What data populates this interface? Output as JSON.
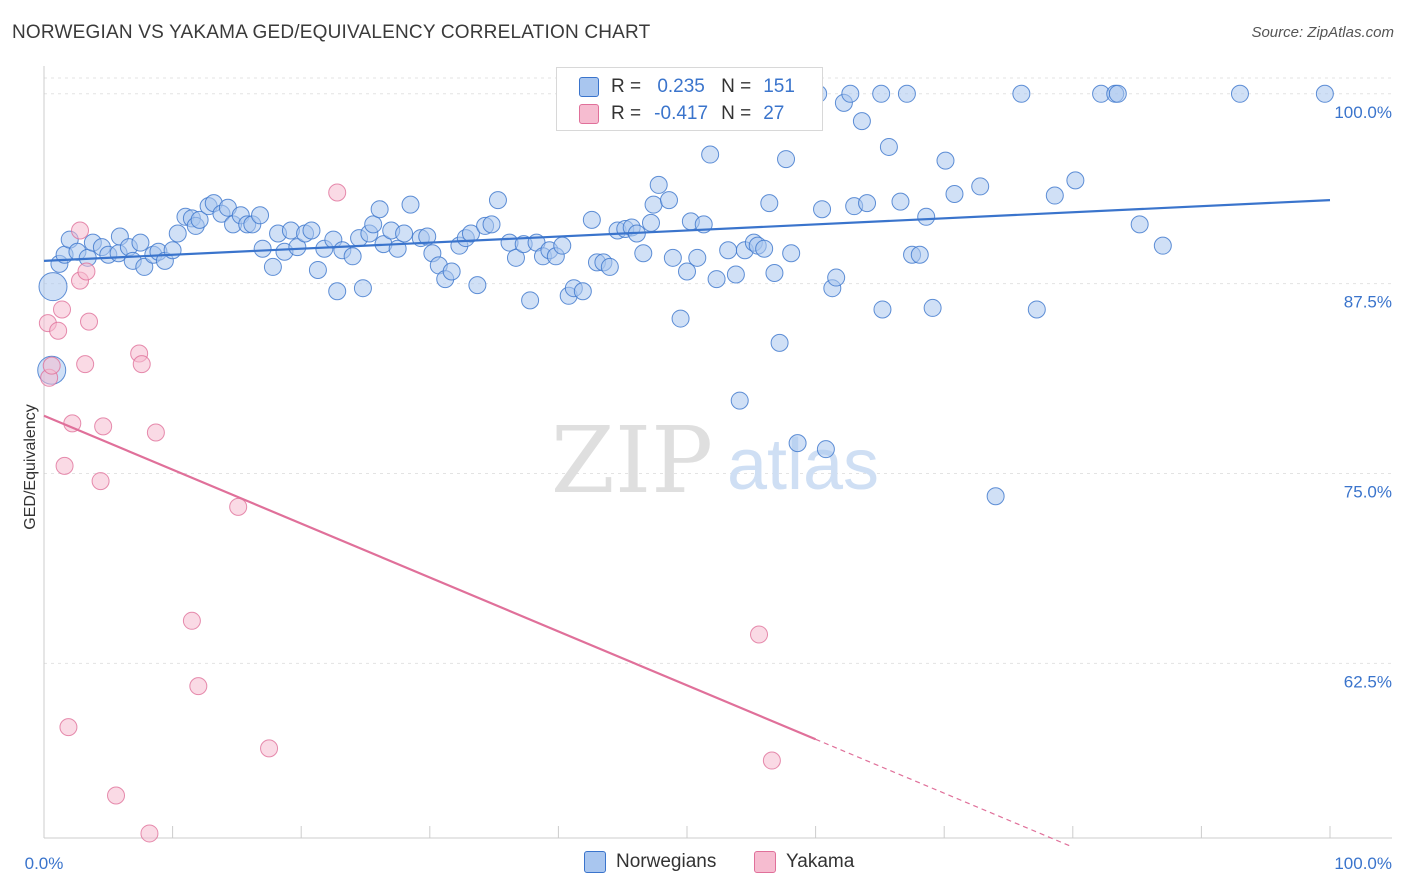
{
  "title": "NORWEGIAN VS YAKAMA GED/EQUIVALENCY CORRELATION CHART",
  "source": "Source: ZipAtlas.com",
  "watermark": {
    "zip": "ZIP",
    "atlas": "atlas"
  },
  "colors": {
    "blue": "#3a74cc",
    "blue_fill": "#a9c6ef",
    "pink": "#e0709a",
    "pink_fill": "#f6bcd0",
    "grid": "#dddddd"
  },
  "legend": {
    "r_label": "R =",
    "n_label": "N =",
    "rows": [
      {
        "r": "0.235",
        "n": "151"
      },
      {
        "r": "-0.417",
        "n": "27"
      }
    ]
  },
  "chart_data": {
    "type": "scatter",
    "xlabel": "",
    "ylabel": "GED/Equivalency",
    "xlim": [
      0,
      100
    ],
    "ylim": [
      51.0,
      101.5
    ],
    "x_tick_labels": [
      "0.0%",
      "100.0%"
    ],
    "y_ticks": [
      {
        "value": 100.0,
        "label": "100.0%"
      },
      {
        "value": 87.5,
        "label": "87.5%"
      },
      {
        "value": 75.0,
        "label": "75.0%"
      },
      {
        "value": 62.5,
        "label": "62.5%"
      }
    ],
    "series": [
      {
        "name": "Norwegians",
        "color": "#3a74cc",
        "trend": {
          "x": [
            0,
            100
          ],
          "y": [
            89.0,
            93.0
          ],
          "dashed_to": 100
        },
        "points": [
          [
            0.7,
            87.3,
            1
          ],
          [
            0.6,
            81.8,
            1
          ],
          [
            1.2,
            88.8,
            0
          ],
          [
            1.6,
            89.4,
            0
          ],
          [
            2.0,
            90.4,
            0
          ],
          [
            2.6,
            89.6,
            0
          ],
          [
            3.4,
            89.2,
            0
          ],
          [
            3.8,
            90.2,
            0
          ],
          [
            4.5,
            89.9,
            0
          ],
          [
            5.0,
            89.4,
            0
          ],
          [
            5.8,
            89.5,
            0
          ],
          [
            5.9,
            90.6,
            0
          ],
          [
            6.6,
            89.9,
            0
          ],
          [
            6.9,
            89.0,
            0
          ],
          [
            7.5,
            90.2,
            0
          ],
          [
            7.8,
            88.6,
            0
          ],
          [
            8.5,
            89.4,
            0
          ],
          [
            8.9,
            89.6,
            0
          ],
          [
            9.4,
            89.0,
            0
          ],
          [
            10.0,
            89.7,
            0
          ],
          [
            10.4,
            90.8,
            0
          ],
          [
            11.0,
            91.9,
            0
          ],
          [
            11.5,
            91.8,
            0
          ],
          [
            11.8,
            91.3,
            0
          ],
          [
            12.1,
            91.7,
            0
          ],
          [
            12.8,
            92.6,
            0
          ],
          [
            13.2,
            92.8,
            0
          ],
          [
            13.8,
            92.1,
            0
          ],
          [
            14.3,
            92.5,
            0
          ],
          [
            14.7,
            91.4,
            0
          ],
          [
            15.3,
            92.0,
            0
          ],
          [
            15.8,
            91.4,
            0
          ],
          [
            16.2,
            91.4,
            0
          ],
          [
            16.8,
            92.0,
            0
          ],
          [
            17.0,
            89.8,
            0
          ],
          [
            17.8,
            88.6,
            0
          ],
          [
            18.2,
            90.8,
            0
          ],
          [
            18.7,
            89.6,
            0
          ],
          [
            19.2,
            91.0,
            0
          ],
          [
            19.7,
            89.9,
            0
          ],
          [
            20.3,
            90.8,
            0
          ],
          [
            20.8,
            91.0,
            0
          ],
          [
            21.3,
            88.4,
            0
          ],
          [
            21.8,
            89.8,
            0
          ],
          [
            22.5,
            90.4,
            0
          ],
          [
            22.8,
            87.0,
            0
          ],
          [
            23.2,
            89.7,
            0
          ],
          [
            24.0,
            89.3,
            0
          ],
          [
            24.5,
            90.5,
            0
          ],
          [
            24.8,
            87.2,
            0
          ],
          [
            25.3,
            90.8,
            0
          ],
          [
            25.6,
            91.4,
            0
          ],
          [
            26.1,
            92.4,
            0
          ],
          [
            26.4,
            90.1,
            0
          ],
          [
            27.0,
            91.0,
            0
          ],
          [
            27.5,
            89.8,
            0
          ],
          [
            28.0,
            90.8,
            0
          ],
          [
            28.5,
            92.7,
            0
          ],
          [
            29.3,
            90.5,
            0
          ],
          [
            29.8,
            90.6,
            0
          ],
          [
            30.2,
            89.5,
            0
          ],
          [
            30.7,
            88.7,
            0
          ],
          [
            31.2,
            87.8,
            0
          ],
          [
            31.7,
            88.3,
            0
          ],
          [
            32.3,
            90.0,
            0
          ],
          [
            32.8,
            90.5,
            0
          ],
          [
            33.2,
            90.8,
            0
          ],
          [
            33.7,
            87.4,
            0
          ],
          [
            34.3,
            91.3,
            0
          ],
          [
            34.8,
            91.4,
            0
          ],
          [
            35.3,
            93.0,
            0
          ],
          [
            36.2,
            90.2,
            0
          ],
          [
            36.7,
            89.2,
            0
          ],
          [
            37.3,
            90.1,
            0
          ],
          [
            37.8,
            86.4,
            0
          ],
          [
            38.3,
            90.2,
            0
          ],
          [
            38.8,
            89.3,
            0
          ],
          [
            39.3,
            89.7,
            0
          ],
          [
            39.8,
            89.3,
            0
          ],
          [
            40.3,
            90.0,
            0
          ],
          [
            40.8,
            86.7,
            0
          ],
          [
            41.2,
            87.2,
            0
          ],
          [
            41.9,
            87.0,
            0
          ],
          [
            42.6,
            91.7,
            0
          ],
          [
            43.0,
            88.9,
            0
          ],
          [
            43.5,
            88.9,
            0
          ],
          [
            44.0,
            88.6,
            0
          ],
          [
            44.6,
            91.0,
            0
          ],
          [
            45.2,
            91.1,
            0
          ],
          [
            45.7,
            91.2,
            0
          ],
          [
            46.1,
            90.8,
            0
          ],
          [
            46.6,
            89.5,
            0
          ],
          [
            47.2,
            91.5,
            0
          ],
          [
            47.4,
            92.7,
            0
          ],
          [
            47.8,
            94.0,
            0
          ],
          [
            48.6,
            93.0,
            0
          ],
          [
            48.9,
            89.2,
            0
          ],
          [
            49.5,
            85.2,
            0
          ],
          [
            50.0,
            88.3,
            0
          ],
          [
            50.3,
            91.6,
            0
          ],
          [
            50.8,
            89.2,
            0
          ],
          [
            51.3,
            91.4,
            0
          ],
          [
            51.8,
            96.0,
            0
          ],
          [
            52.3,
            87.8,
            0
          ],
          [
            53.2,
            89.7,
            0
          ],
          [
            53.8,
            88.1,
            0
          ],
          [
            54.1,
            79.8,
            0
          ],
          [
            54.5,
            89.7,
            0
          ],
          [
            55.2,
            90.2,
            0
          ],
          [
            55.5,
            90.0,
            0
          ],
          [
            56.0,
            89.8,
            0
          ],
          [
            56.4,
            92.8,
            0
          ],
          [
            56.8,
            88.2,
            0
          ],
          [
            57.2,
            83.6,
            0
          ],
          [
            57.7,
            95.7,
            0
          ],
          [
            58.1,
            89.5,
            0
          ],
          [
            58.6,
            77.0,
            0
          ],
          [
            60.2,
            100.0,
            0
          ],
          [
            60.5,
            92.4,
            0
          ],
          [
            60.8,
            76.6,
            0
          ],
          [
            61.3,
            87.2,
            0
          ],
          [
            61.6,
            87.9,
            0
          ],
          [
            62.2,
            99.4,
            0
          ],
          [
            62.7,
            100.0,
            0
          ],
          [
            63.0,
            92.6,
            0
          ],
          [
            63.6,
            98.2,
            0
          ],
          [
            64.0,
            92.8,
            0
          ],
          [
            65.1,
            100.0,
            0
          ],
          [
            65.2,
            85.8,
            0
          ],
          [
            65.7,
            96.5,
            0
          ],
          [
            66.6,
            92.9,
            0
          ],
          [
            67.1,
            100.0,
            0
          ],
          [
            67.5,
            89.4,
            0
          ],
          [
            68.1,
            89.4,
            0
          ],
          [
            68.6,
            91.9,
            0
          ],
          [
            69.1,
            85.9,
            0
          ],
          [
            70.1,
            95.6,
            0
          ],
          [
            70.8,
            93.4,
            0
          ],
          [
            72.8,
            93.9,
            0
          ],
          [
            74.0,
            73.5,
            0
          ],
          [
            76.0,
            100.0,
            0
          ],
          [
            77.2,
            85.8,
            0
          ],
          [
            78.6,
            93.3,
            0
          ],
          [
            80.2,
            94.3,
            0
          ],
          [
            82.2,
            100.0,
            0
          ],
          [
            83.3,
            100.0,
            0
          ],
          [
            83.5,
            100.0,
            0
          ],
          [
            85.2,
            91.4,
            0
          ],
          [
            87.0,
            90.0,
            0
          ],
          [
            93.0,
            100.0,
            0
          ],
          [
            99.6,
            100.0,
            0
          ]
        ]
      },
      {
        "name": "Yakama",
        "color": "#e0709a",
        "trend": {
          "x": [
            0,
            60
          ],
          "y": [
            78.8,
            57.5
          ],
          "dashed_to": 80
        },
        "points": [
          [
            0.3,
            84.9,
            0
          ],
          [
            0.4,
            81.3,
            0
          ],
          [
            0.6,
            82.1,
            0
          ],
          [
            1.1,
            84.4,
            0
          ],
          [
            1.4,
            85.8,
            0
          ],
          [
            1.6,
            75.5,
            0
          ],
          [
            1.9,
            58.3,
            0
          ],
          [
            2.2,
            78.3,
            0
          ],
          [
            2.8,
            91.0,
            0
          ],
          [
            2.8,
            87.7,
            0
          ],
          [
            3.2,
            82.2,
            0
          ],
          [
            3.3,
            88.3,
            0
          ],
          [
            3.5,
            85.0,
            0
          ],
          [
            4.4,
            74.5,
            0
          ],
          [
            4.6,
            78.1,
            0
          ],
          [
            5.6,
            53.8,
            0
          ],
          [
            7.4,
            82.9,
            0
          ],
          [
            7.6,
            82.2,
            0
          ],
          [
            8.2,
            51.3,
            0
          ],
          [
            8.7,
            77.7,
            0
          ],
          [
            11.5,
            65.3,
            0
          ],
          [
            12.0,
            61.0,
            0
          ],
          [
            15.1,
            72.8,
            0
          ],
          [
            17.5,
            56.9,
            0
          ],
          [
            22.8,
            93.5,
            0
          ],
          [
            55.6,
            64.4,
            0
          ],
          [
            56.6,
            56.1,
            0
          ]
        ]
      }
    ]
  }
}
